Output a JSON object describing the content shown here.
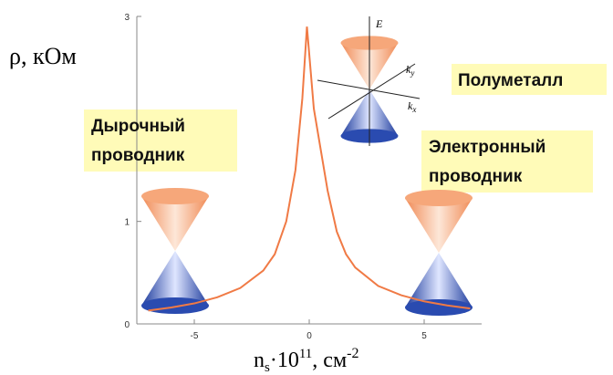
{
  "chart_data": {
    "type": "line",
    "y_label": "ρ, кОм",
    "x_label": {
      "n": "n",
      "sub": "s",
      "mid": "·10",
      "exp": "11",
      "unit": ", см",
      "unit_exp": "-2"
    },
    "annotations": {
      "hole": [
        "Дырочный",
        "проводник"
      ],
      "semimetal": [
        "Полуметалл"
      ],
      "electron": [
        "Электронный",
        "проводник"
      ]
    },
    "inset_labels": {
      "energy": "E",
      "ky": "k",
      "ky_sub": "y",
      "kx": "k",
      "kx_sub": "x"
    },
    "x": [
      -7,
      -6,
      -5,
      -4,
      -3,
      -2,
      -1.5,
      -1,
      -0.6,
      -0.3,
      -0.1,
      0.2,
      0.5,
      0.8,
      1.2,
      1.6,
      2,
      3,
      4,
      5,
      6,
      7
    ],
    "series": [
      {
        "color": "#f07a45",
        "values": [
          0.13,
          0.16,
          0.2,
          0.26,
          0.35,
          0.52,
          0.68,
          1.0,
          1.5,
          2.2,
          2.9,
          2.1,
          1.7,
          1.3,
          0.9,
          0.68,
          0.55,
          0.37,
          0.28,
          0.22,
          0.18,
          0.15
        ]
      }
    ],
    "xlim": [
      -7.5,
      7.5
    ],
    "ylim": [
      0,
      3
    ],
    "xticks": [
      -5,
      0,
      5
    ],
    "yticks": [
      0,
      1,
      3
    ]
  }
}
